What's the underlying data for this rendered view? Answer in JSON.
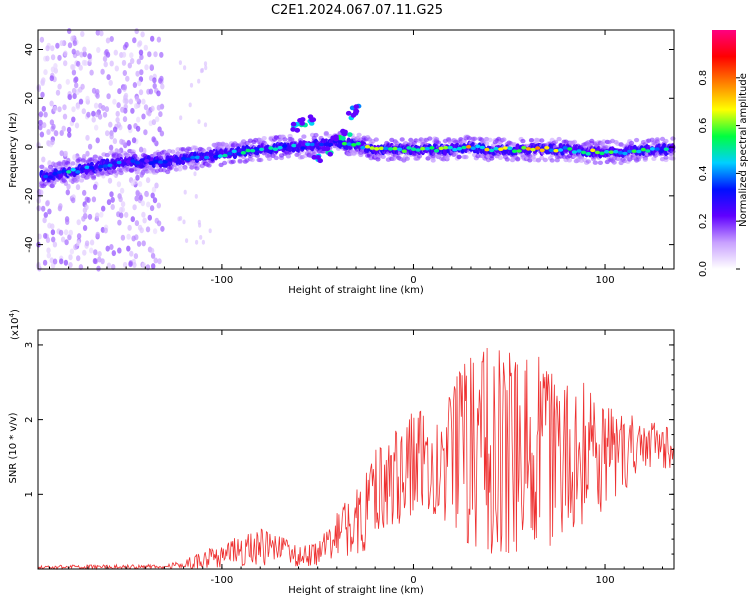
{
  "figure": {
    "title": "C2E1.2024.067.07.11.G25"
  },
  "chart_data": [
    {
      "type": "heatmap",
      "xlabel": "Height of straight line (km)",
      "ylabel": "Frequency (Hz)",
      "xlim": [
        -196,
        136
      ],
      "ylim": [
        -50,
        48
      ],
      "x_ticks": [
        -100,
        0,
        100
      ],
      "x_tick_labels": [
        "-100",
        "0",
        "100"
      ],
      "y_ticks": [
        -40,
        -20,
        0,
        20,
        40
      ],
      "y_tick_labels": [
        "-40",
        "-20",
        "0",
        "20",
        "40"
      ],
      "grid": false,
      "colorbar": {
        "label": "Normalized spectral amplitude",
        "range": [
          0,
          1
        ],
        "ticks": [
          0.0,
          0.2,
          0.4,
          0.6,
          0.8
        ],
        "tick_labels": [
          "0.0",
          "0.2",
          "0.4",
          "0.6",
          "0.8"
        ],
        "colormap": [
          "#ffffff",
          "#c8a0ff",
          "#6000ff",
          "#0010ff",
          "#00d0ff",
          "#00ff40",
          "#ffff00",
          "#ff8000",
          "#ff0000",
          "#ff0080"
        ]
      },
      "ridge": [
        {
          "x": -190,
          "y": -12,
          "amp": 0.35
        },
        {
          "x": -180,
          "y": -10,
          "amp": 0.45
        },
        {
          "x": -170,
          "y": -9,
          "amp": 0.4
        },
        {
          "x": -160,
          "y": -7,
          "amp": 0.4
        },
        {
          "x": -150,
          "y": -6,
          "amp": 0.35
        },
        {
          "x": -140,
          "y": -6,
          "amp": 0.3
        },
        {
          "x": -130,
          "y": -6,
          "amp": 0.35
        },
        {
          "x": -120,
          "y": -5,
          "amp": 0.35
        },
        {
          "x": -110,
          "y": -4,
          "amp": 0.4
        },
        {
          "x": -100,
          "y": -3,
          "amp": 0.45
        },
        {
          "x": -90,
          "y": -2,
          "amp": 0.5
        },
        {
          "x": -80,
          "y": -1,
          "amp": 0.45
        },
        {
          "x": -70,
          "y": 0,
          "amp": 0.45
        },
        {
          "x": -60,
          "y": 0,
          "amp": 0.4
        },
        {
          "x": -50,
          "y": 1,
          "amp": 0.4
        },
        {
          "x": -40,
          "y": 2,
          "amp": 0.45
        },
        {
          "x": -30,
          "y": 1,
          "amp": 0.6
        },
        {
          "x": -20,
          "y": -1,
          "amp": 0.75
        },
        {
          "x": -10,
          "y": -1,
          "amp": 0.55
        },
        {
          "x": 0,
          "y": -1,
          "amp": 0.6
        },
        {
          "x": 10,
          "y": -1,
          "amp": 0.65
        },
        {
          "x": 20,
          "y": -1,
          "amp": 0.7
        },
        {
          "x": 30,
          "y": 0,
          "amp": 0.7
        },
        {
          "x": 40,
          "y": -1,
          "amp": 0.65
        },
        {
          "x": 50,
          "y": -1,
          "amp": 0.7
        },
        {
          "x": 60,
          "y": -1,
          "amp": 0.7
        },
        {
          "x": 70,
          "y": -1,
          "amp": 0.65
        },
        {
          "x": 80,
          "y": -1,
          "amp": 0.6
        },
        {
          "x": 90,
          "y": -2,
          "amp": 0.6
        },
        {
          "x": 100,
          "y": -2,
          "amp": 0.6
        },
        {
          "x": 110,
          "y": -2,
          "amp": 0.55
        },
        {
          "x": 120,
          "y": -1,
          "amp": 0.5
        },
        {
          "x": 130,
          "y": -1,
          "amp": 0.5
        }
      ],
      "branches": [
        {
          "x": -62,
          "y": 8,
          "amp": 0.45
        },
        {
          "x": -58,
          "y": 10,
          "amp": 0.5
        },
        {
          "x": -54,
          "y": 11,
          "amp": 0.45
        },
        {
          "x": -50,
          "y": -5,
          "amp": 0.45
        },
        {
          "x": -45,
          "y": -2,
          "amp": 0.5
        },
        {
          "x": -40,
          "y": 3,
          "amp": 0.55
        },
        {
          "x": -35,
          "y": 5,
          "amp": 0.5
        },
        {
          "x": -32,
          "y": 13,
          "amp": 0.45
        },
        {
          "x": -30,
          "y": 16,
          "amp": 0.4
        }
      ]
    },
    {
      "type": "line",
      "xlabel": "Height of straight line (km)",
      "ylabel": "SNR (10 * v/v)",
      "multiplier_label": "(x10",
      "multiplier_exponent": "4",
      "multiplier_close": ")",
      "xlim": [
        -196,
        136
      ],
      "ylim": [
        0,
        3.2
      ],
      "x_ticks": [
        -100,
        0,
        100
      ],
      "x_tick_labels": [
        "-100",
        "0",
        "100"
      ],
      "y_ticks": [
        1,
        2,
        3
      ],
      "y_tick_labels": [
        "1",
        "2",
        "3"
      ],
      "grid": false,
      "series_color": "#ee3030",
      "envelope": {
        "x": [
          -196,
          -130,
          -120,
          -100,
          -80,
          -70,
          -60,
          -50,
          -40,
          -30,
          -20,
          -10,
          0,
          10,
          20,
          30,
          40,
          50,
          60,
          70,
          80,
          90,
          100,
          110,
          120,
          136
        ],
        "min": [
          0.0,
          0.0,
          0.0,
          0.02,
          0.05,
          0.05,
          0.03,
          0.05,
          0.15,
          0.2,
          0.3,
          0.5,
          0.7,
          0.7,
          0.5,
          0.3,
          0.2,
          0.2,
          0.2,
          0.3,
          0.3,
          0.5,
          0.8,
          1.0,
          1.2,
          1.3
        ],
        "max": [
          0.05,
          0.06,
          0.12,
          0.35,
          0.55,
          0.45,
          0.3,
          0.35,
          0.75,
          1.1,
          1.7,
          1.9,
          2.3,
          2.1,
          2.5,
          2.9,
          3.1,
          2.9,
          2.9,
          2.8,
          2.6,
          2.5,
          2.2,
          2.1,
          2.0,
          1.9
        ]
      }
    }
  ]
}
